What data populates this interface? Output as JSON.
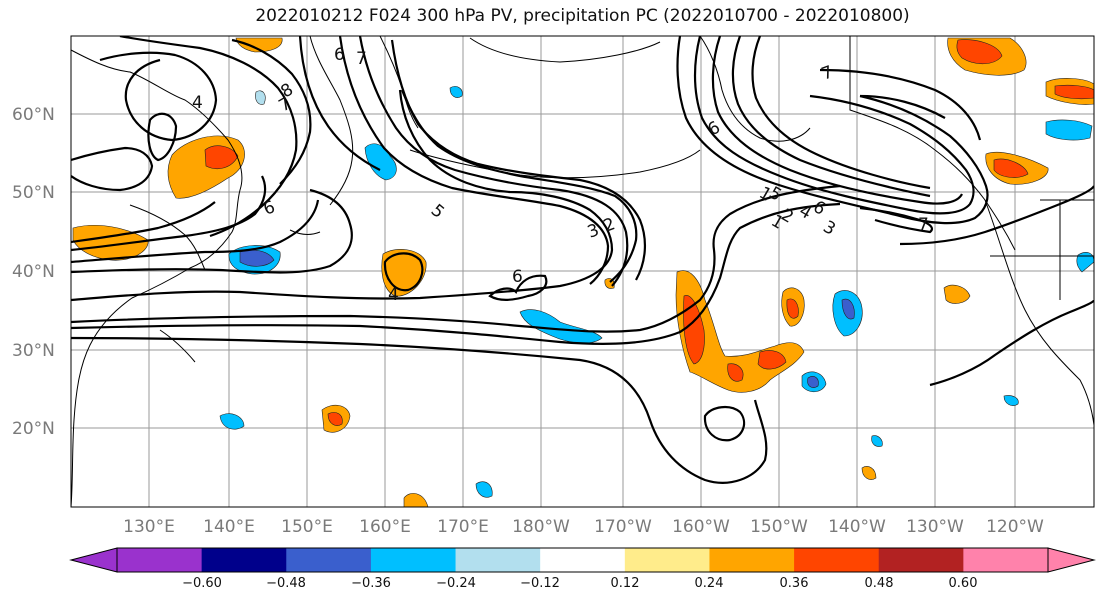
{
  "title": "2022010212 F024 300 hPa PV, precipitation PC (2022010700 - 2022010800)",
  "lat_labels": [
    "60°N",
    "50°N",
    "40°N",
    "30°N",
    "20°N"
  ],
  "lon_labels": [
    "130°E",
    "140°E",
    "150°E",
    "160°E",
    "170°E",
    "180°W",
    "170°W",
    "160°W",
    "150°W",
    "140°W",
    "130°W",
    "120°W"
  ],
  "pv_contour_labels": [
    "8",
    "7",
    "6",
    "5",
    "4",
    "3",
    "2",
    "1",
    "6",
    "5",
    "4",
    "3",
    "2",
    "1",
    "6",
    "7",
    "4",
    "6",
    "7",
    "7",
    "6"
  ],
  "colorbar": {
    "tick_labels": [
      "−0.60",
      "−0.48",
      "−0.36",
      "−0.24",
      "−0.12",
      "0.12",
      "0.24",
      "0.36",
      "0.48",
      "0.60"
    ],
    "colors": [
      "#9a32cd",
      "#00008b",
      "#3a5fcd",
      "#00bfff",
      "#b2dfee",
      "#ffffff",
      "#ffec8b",
      "#ffa500",
      "#ff4500",
      "#b22222",
      "#ff82ab"
    ]
  }
}
